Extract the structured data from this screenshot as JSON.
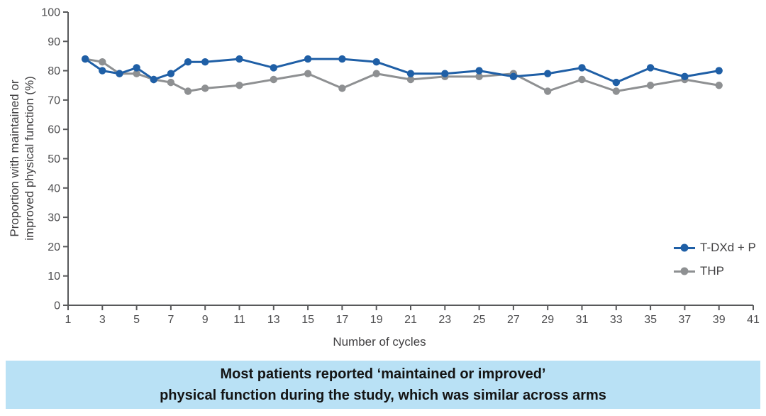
{
  "figure": {
    "y_axis_title_line1": "Proportion with maintained or",
    "y_axis_title_line2": "improved physical function (%)",
    "x_axis_title": "Number of cycles"
  },
  "legend": {
    "items": [
      {
        "label": "T-DXd + P",
        "color": "#1f5fa6"
      },
      {
        "label": "THP",
        "color": "#8e9092"
      }
    ]
  },
  "caption": {
    "line1": "Most patients reported ‘maintained or improved’",
    "line2": "physical function during the study, which was similar across arms",
    "bg_color": "#b9e1f5"
  },
  "colors": {
    "axis": "#58595b",
    "tick_label": "#4d4d4f",
    "axis_title": "#414042"
  },
  "chart_data": {
    "type": "line",
    "x": [
      2,
      3,
      4,
      5,
      6,
      7,
      8,
      9,
      11,
      13,
      15,
      17,
      19,
      21,
      23,
      25,
      27,
      29,
      31,
      33,
      35,
      37,
      39
    ],
    "series": [
      {
        "name": "T-DXd + P",
        "color": "#1f5fa6",
        "values": [
          84,
          80,
          79,
          81,
          77,
          79,
          83,
          83,
          84,
          81,
          84,
          84,
          83,
          79,
          79,
          80,
          78,
          79,
          81,
          76,
          81,
          78,
          80
        ]
      },
      {
        "name": "THP",
        "color": "#8e9092",
        "values": [
          84,
          83,
          79,
          79,
          77,
          76,
          73,
          74,
          75,
          77,
          79,
          74,
          79,
          77,
          78,
          78,
          79,
          73,
          77,
          73,
          75,
          77,
          75
        ]
      }
    ],
    "title": "",
    "xlabel": "Number of cycles",
    "ylabel": "Proportion with maintained or improved physical function (%)",
    "xlim": [
      1,
      41
    ],
    "ylim": [
      0,
      100
    ],
    "x_ticks": [
      1,
      3,
      5,
      7,
      9,
      11,
      13,
      15,
      17,
      19,
      21,
      23,
      25,
      27,
      29,
      31,
      33,
      35,
      37,
      39,
      41
    ],
    "y_ticks": [
      0,
      10,
      20,
      30,
      40,
      50,
      60,
      70,
      80,
      90,
      100
    ],
    "grid": false,
    "legend_position": "right-middle"
  }
}
